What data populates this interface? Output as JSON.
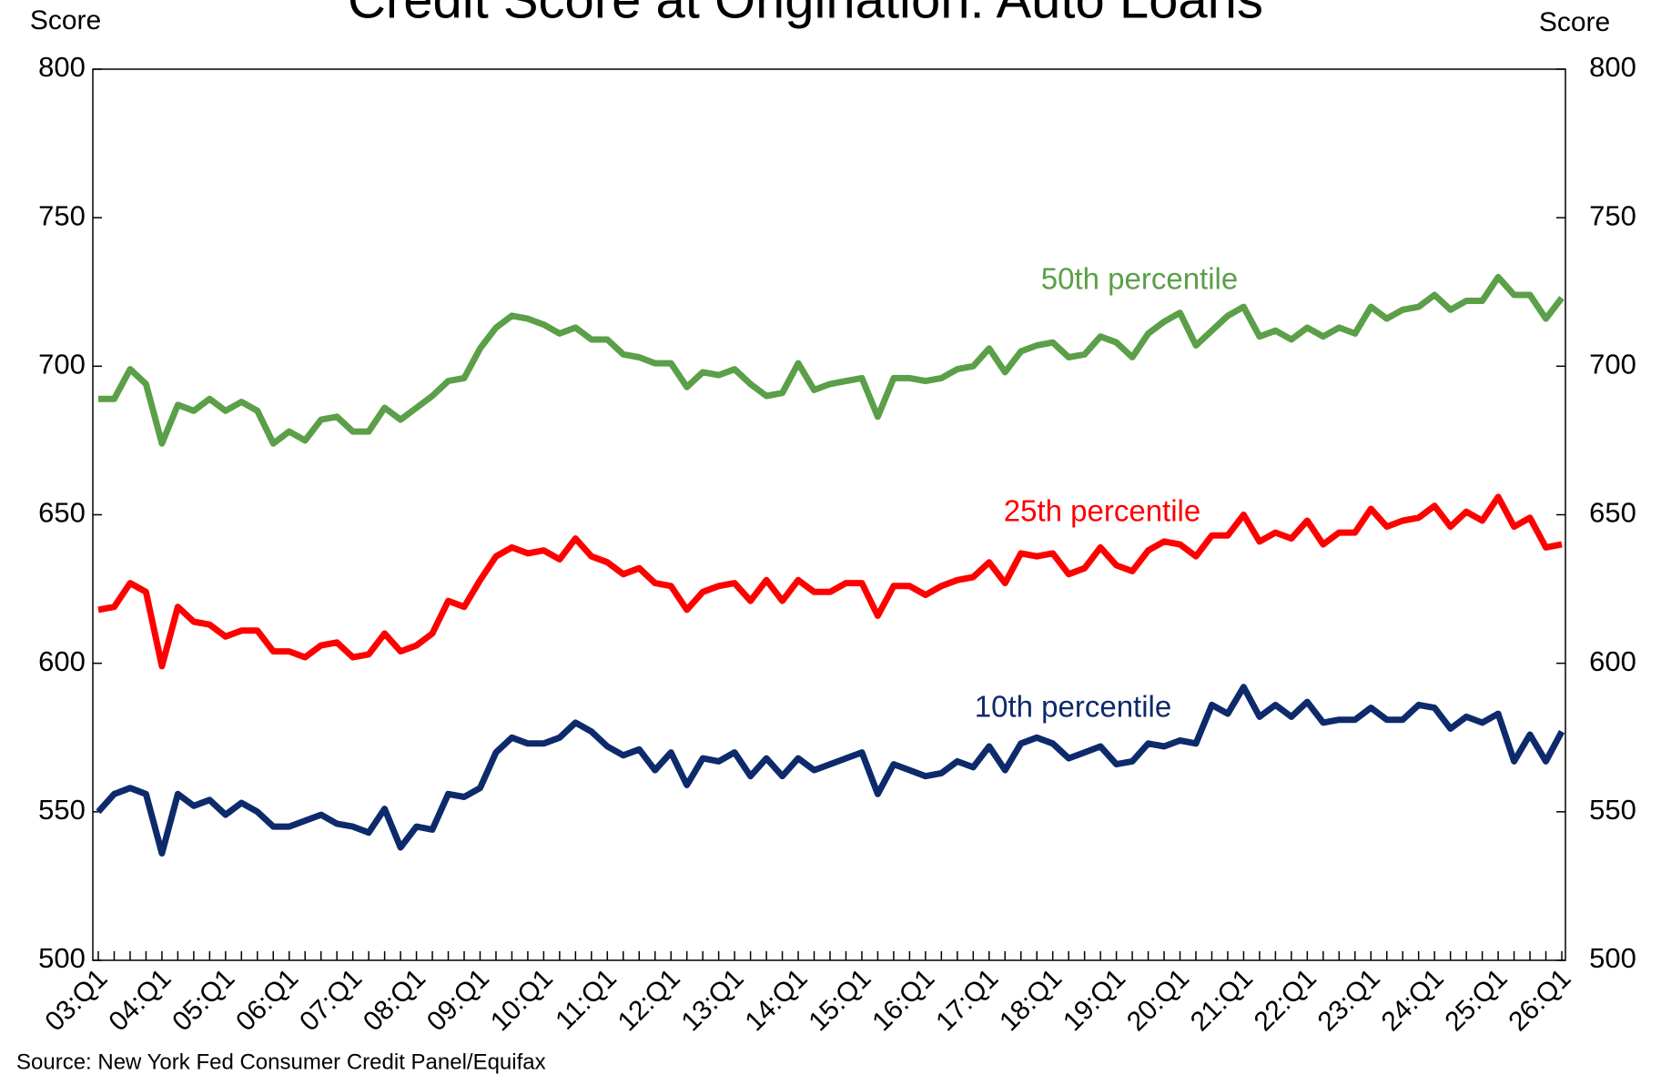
{
  "chart_data": {
    "type": "line",
    "title": "Credit Score at Origination: Auto Loans",
    "y_label": "Score",
    "y2_label": "Score",
    "source": "Source: New York Fed Consumer Credit Panel/Equifax",
    "categories": [
      "03:Q1",
      null,
      null,
      null,
      "04:Q1",
      null,
      null,
      null,
      "05:Q1",
      null,
      null,
      null,
      "06:Q1",
      null,
      null,
      null,
      "07:Q1",
      null,
      null,
      null,
      "08:Q1",
      null,
      null,
      null,
      "09:Q1",
      null,
      null,
      null,
      "10:Q1",
      null,
      null,
      null,
      "11:Q1",
      null,
      null,
      null,
      "12:Q1",
      null,
      null,
      null,
      "13:Q1",
      null,
      null,
      null,
      "14:Q1",
      null,
      null,
      null,
      "15:Q1",
      null,
      null,
      null,
      "16:Q1",
      null,
      null,
      null,
      "17:Q1",
      null,
      null,
      null,
      "18:Q1",
      null,
      null,
      null,
      "19:Q1",
      null,
      null,
      null,
      "20:Q1",
      null,
      null,
      null,
      "21:Q1",
      null,
      null,
      null,
      "22:Q1",
      null,
      null,
      null,
      "23:Q1",
      null,
      null,
      null,
      "24:Q1",
      null,
      null,
      null,
      "25:Q1",
      null,
      null,
      null,
      "26:Q1"
    ],
    "series": [
      {
        "name": "50th percentile",
        "color": "#5b9f48",
        "values": [
          689,
          689,
          699,
          694,
          674,
          687,
          685,
          689,
          685,
          688,
          685,
          674,
          678,
          675,
          682,
          683,
          678,
          678,
          686,
          682,
          686,
          690,
          695,
          696,
          706,
          713,
          717,
          716,
          714,
          711,
          713,
          709,
          709,
          704,
          703,
          701,
          701,
          693,
          698,
          697,
          699,
          694,
          690,
          691,
          701,
          692,
          694,
          695,
          696,
          683,
          696,
          696,
          695,
          696,
          699,
          700,
          706,
          698,
          705,
          707,
          708,
          703,
          704,
          710,
          708,
          703,
          711,
          715,
          718,
          707,
          712,
          717,
          720,
          710,
          712,
          709,
          713,
          710,
          713,
          711,
          720,
          716,
          719,
          720,
          724,
          719,
          722,
          722,
          730,
          724,
          724,
          716,
          723
        ]
      },
      {
        "name": "25th percentile",
        "color": "#ff0000",
        "values": [
          618,
          619,
          627,
          624,
          599,
          619,
          614,
          613,
          609,
          611,
          611,
          604,
          604,
          602,
          606,
          607,
          602,
          603,
          610,
          604,
          606,
          610,
          621,
          619,
          628,
          636,
          639,
          637,
          638,
          635,
          642,
          636,
          634,
          630,
          632,
          627,
          626,
          618,
          624,
          626,
          627,
          621,
          628,
          621,
          628,
          624,
          624,
          627,
          627,
          616,
          626,
          626,
          623,
          626,
          628,
          629,
          634,
          627,
          637,
          636,
          637,
          630,
          632,
          639,
          633,
          631,
          638,
          641,
          640,
          636,
          643,
          643,
          650,
          641,
          644,
          642,
          648,
          640,
          644,
          644,
          652,
          646,
          648,
          649,
          653,
          646,
          651,
          648,
          656,
          646,
          649,
          639,
          640
        ]
      },
      {
        "name": "10th percentile",
        "color": "#0d2a6b",
        "values": [
          550,
          556,
          558,
          556,
          536,
          556,
          552,
          554,
          549,
          553,
          550,
          545,
          545,
          547,
          549,
          546,
          545,
          543,
          551,
          538,
          545,
          544,
          556,
          555,
          558,
          570,
          575,
          573,
          573,
          575,
          580,
          577,
          572,
          569,
          571,
          564,
          570,
          559,
          568,
          567,
          570,
          562,
          568,
          562,
          568,
          564,
          566,
          568,
          570,
          556,
          566,
          564,
          562,
          563,
          567,
          565,
          572,
          564,
          573,
          575,
          573,
          568,
          570,
          572,
          566,
          567,
          573,
          572,
          574,
          573,
          586,
          583,
          592,
          582,
          586,
          582,
          587,
          580,
          581,
          581,
          585,
          581,
          581,
          586,
          585,
          578,
          582,
          580,
          583,
          567,
          576,
          567,
          577
        ]
      }
    ],
    "ylim": [
      500,
      800
    ],
    "yticks": [
      500,
      550,
      600,
      650,
      700,
      750,
      800
    ],
    "y2lim": [
      500,
      800
    ],
    "y2ticks": [
      500,
      550,
      600,
      650,
      700,
      750,
      800
    ],
    "grid": false
  }
}
